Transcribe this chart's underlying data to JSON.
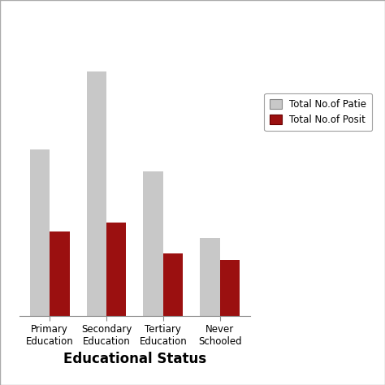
{
  "categories": [
    "Primary\nEducation",
    "Secondary\nEducation",
    "Tertiary\nEducation",
    "Never\nSchooled"
  ],
  "total_patients": [
    75,
    110,
    65,
    35
  ],
  "total_positive": [
    38,
    42,
    28,
    25
  ],
  "bar_color_gray": "#c8c8c8",
  "bar_color_red": "#9b1010",
  "legend_label_gray": "Total No.of Patie",
  "legend_label_red": "Total No.of Posit",
  "xlabel": "Educational Status",
  "ylabel": "",
  "ylim": [
    0,
    125
  ],
  "background_color": "#ffffff",
  "bar_width": 0.35,
  "xlabel_fontsize": 12,
  "xlabel_fontweight": "bold",
  "figure_border_color": "#aaaaaa",
  "legend_fontsize": 8.5
}
